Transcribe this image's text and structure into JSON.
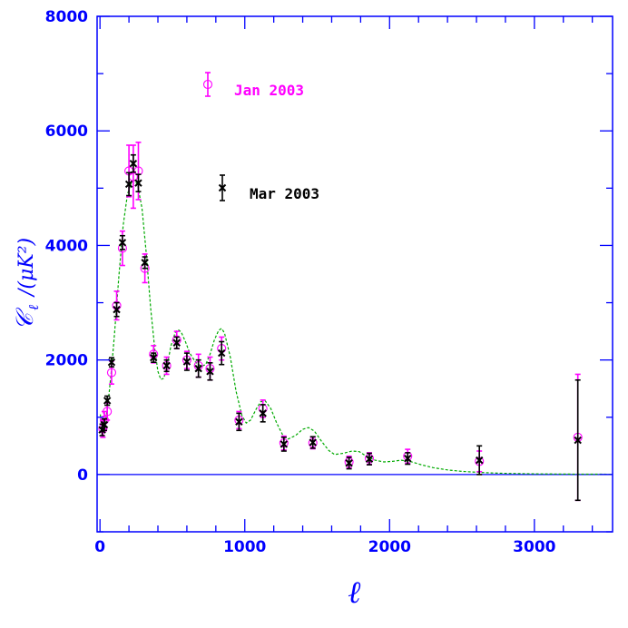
{
  "chart_data": {
    "type": "scatter",
    "title": "",
    "xlabel": "ℓ",
    "ylabel_main": "𝒞",
    "ylabel_sub": "ℓ",
    "ylabel_rest": "/(μK²)",
    "xlim": [
      -20,
      3540
    ],
    "ylim": [
      -1000,
      8000
    ],
    "x_ticks": [
      0,
      1000,
      2000,
      3000
    ],
    "y_ticks": [
      0,
      2000,
      4000,
      6000,
      8000
    ],
    "colors": {
      "axes": "#0000ff",
      "jan": "#ff00ff",
      "mar": "#000000",
      "model": "#00aa00",
      "zero_line": "#0000ff"
    },
    "legend": {
      "placement": "upper-middle",
      "entries": [
        {
          "label": "Jan 2003",
          "series": "jan"
        },
        {
          "label": "Mar 2003",
          "series": "mar"
        }
      ]
    },
    "series": [
      {
        "name": "Jan 2003",
        "key": "jan",
        "marker": "circle",
        "points": [
          {
            "x": 20,
            "y": 800,
            "err": 150
          },
          {
            "x": 30,
            "y": 950,
            "err": 150
          },
          {
            "x": 50,
            "y": 1100,
            "err": 150
          },
          {
            "x": 80,
            "y": 1780,
            "err": 200
          },
          {
            "x": 115,
            "y": 2950,
            "err": 250
          },
          {
            "x": 155,
            "y": 3950,
            "err": 300
          },
          {
            "x": 200,
            "y": 5300,
            "err": 450
          },
          {
            "x": 230,
            "y": 5200,
            "err": 550
          },
          {
            "x": 265,
            "y": 5300,
            "err": 500
          },
          {
            "x": 310,
            "y": 3600,
            "err": 250
          },
          {
            "x": 370,
            "y": 2100,
            "err": 150
          },
          {
            "x": 460,
            "y": 1900,
            "err": 150
          },
          {
            "x": 530,
            "y": 2350,
            "err": 150
          },
          {
            "x": 600,
            "y": 2000,
            "err": 150
          },
          {
            "x": 680,
            "y": 1900,
            "err": 200
          },
          {
            "x": 760,
            "y": 1850,
            "err": 200
          },
          {
            "x": 840,
            "y": 2200,
            "err": 200
          },
          {
            "x": 960,
            "y": 950,
            "err": 150
          },
          {
            "x": 1125,
            "y": 1150,
            "err": 150
          },
          {
            "x": 1270,
            "y": 550,
            "err": 120
          },
          {
            "x": 1470,
            "y": 550,
            "err": 100
          },
          {
            "x": 1720,
            "y": 220,
            "err": 100
          },
          {
            "x": 1860,
            "y": 280,
            "err": 100
          },
          {
            "x": 2125,
            "y": 320,
            "err": 120
          },
          {
            "x": 2620,
            "y": 230,
            "err": 180
          },
          {
            "x": 3300,
            "y": 650,
            "err": 1100
          }
        ]
      },
      {
        "name": "Mar 2003",
        "key": "mar",
        "marker": "cross",
        "points": [
          {
            "x": 15,
            "y": 780,
            "err": 100
          },
          {
            "x": 30,
            "y": 870,
            "err": 100
          },
          {
            "x": 50,
            "y": 1290,
            "err": 80
          },
          {
            "x": 80,
            "y": 1960,
            "err": 80
          },
          {
            "x": 115,
            "y": 2880,
            "err": 120
          },
          {
            "x": 155,
            "y": 4050,
            "err": 120
          },
          {
            "x": 200,
            "y": 5070,
            "err": 200
          },
          {
            "x": 230,
            "y": 5430,
            "err": 150
          },
          {
            "x": 265,
            "y": 5090,
            "err": 150
          },
          {
            "x": 310,
            "y": 3700,
            "err": 100
          },
          {
            "x": 370,
            "y": 2040,
            "err": 80
          },
          {
            "x": 460,
            "y": 1900,
            "err": 100
          },
          {
            "x": 530,
            "y": 2300,
            "err": 100
          },
          {
            "x": 600,
            "y": 1970,
            "err": 150
          },
          {
            "x": 680,
            "y": 1850,
            "err": 150
          },
          {
            "x": 760,
            "y": 1800,
            "err": 150
          },
          {
            "x": 840,
            "y": 2120,
            "err": 200
          },
          {
            "x": 960,
            "y": 920,
            "err": 150
          },
          {
            "x": 1125,
            "y": 1070,
            "err": 150
          },
          {
            "x": 1270,
            "y": 530,
            "err": 120
          },
          {
            "x": 1470,
            "y": 560,
            "err": 100
          },
          {
            "x": 1720,
            "y": 200,
            "err": 100
          },
          {
            "x": 1860,
            "y": 270,
            "err": 100
          },
          {
            "x": 2125,
            "y": 280,
            "err": 100
          },
          {
            "x": 2620,
            "y": 250,
            "err": 250
          },
          {
            "x": 3300,
            "y": 600,
            "err": 1050
          }
        ]
      }
    ],
    "model_curve": {
      "style": "dashed",
      "points": [
        [
          2,
          1050
        ],
        [
          10,
          880
        ],
        [
          20,
          820
        ],
        [
          40,
          950
        ],
        [
          60,
          1350
        ],
        [
          80,
          1850
        ],
        [
          100,
          2450
        ],
        [
          130,
          3450
        ],
        [
          160,
          4350
        ],
        [
          190,
          4900
        ],
        [
          220,
          5120
        ],
        [
          240,
          5140
        ],
        [
          260,
          5050
        ],
        [
          290,
          4650
        ],
        [
          320,
          3850
        ],
        [
          350,
          2900
        ],
        [
          380,
          2150
        ],
        [
          400,
          1800
        ],
        [
          420,
          1660
        ],
        [
          440,
          1680
        ],
        [
          460,
          1850
        ],
        [
          490,
          2250
        ],
        [
          520,
          2480
        ],
        [
          540,
          2530
        ],
        [
          560,
          2490
        ],
        [
          590,
          2320
        ],
        [
          620,
          2120
        ],
        [
          660,
          1960
        ],
        [
          700,
          1890
        ],
        [
          730,
          1920
        ],
        [
          760,
          2100
        ],
        [
          790,
          2350
        ],
        [
          820,
          2520
        ],
        [
          840,
          2550
        ],
        [
          860,
          2470
        ],
        [
          900,
          2050
        ],
        [
          940,
          1450
        ],
        [
          980,
          1030
        ],
        [
          1010,
          900
        ],
        [
          1040,
          950
        ],
        [
          1080,
          1150
        ],
        [
          1110,
          1270
        ],
        [
          1140,
          1290
        ],
        [
          1180,
          1150
        ],
        [
          1220,
          900
        ],
        [
          1260,
          700
        ],
        [
          1300,
          620
        ],
        [
          1350,
          680
        ],
        [
          1400,
          790
        ],
        [
          1440,
          820
        ],
        [
          1480,
          760
        ],
        [
          1530,
          580
        ],
        [
          1580,
          420
        ],
        [
          1620,
          350
        ],
        [
          1680,
          370
        ],
        [
          1740,
          410
        ],
        [
          1790,
          400
        ],
        [
          1840,
          320
        ],
        [
          1900,
          250
        ],
        [
          1960,
          220
        ],
        [
          2020,
          230
        ],
        [
          2080,
          250
        ],
        [
          2140,
          230
        ],
        [
          2220,
          170
        ],
        [
          2300,
          120
        ],
        [
          2400,
          80
        ],
        [
          2500,
          55
        ],
        [
          2600,
          40
        ],
        [
          2700,
          28
        ],
        [
          2800,
          20
        ],
        [
          3000,
          12
        ],
        [
          3200,
          8
        ],
        [
          3540,
          5
        ]
      ]
    }
  }
}
